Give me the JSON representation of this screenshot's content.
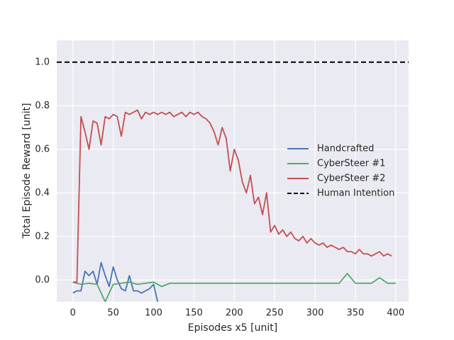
{
  "chart_data": {
    "type": "line",
    "xlabel": "Episodes x5 [unit]",
    "ylabel": "Total Episode Reward [unit]",
    "xlim": [
      -20,
      416
    ],
    "ylim": [
      -0.1,
      1.1
    ],
    "xticks": [
      0,
      50,
      100,
      150,
      200,
      250,
      300,
      350,
      400
    ],
    "yticks": [
      {
        "value": 0,
        "label": "0.0"
      },
      {
        "value": 0.2,
        "label": "0.2"
      },
      {
        "value": 0.4,
        "label": "0.4"
      },
      {
        "value": 0.6,
        "label": "0.6"
      },
      {
        "value": 0.8,
        "label": "0.8"
      },
      {
        "value": 1.0,
        "label": "1.0"
      }
    ],
    "grid": true,
    "legend": "center right",
    "series": [
      {
        "name": "Handcrafted",
        "color": "#4c72b0",
        "x": [
          0,
          5,
          10,
          15,
          20,
          25,
          30,
          35,
          40,
          45,
          50,
          55,
          60,
          65,
          70,
          75,
          80,
          85,
          90,
          95,
          100,
          105
        ],
        "values": [
          -0.06,
          -0.05,
          -0.05,
          0.04,
          0.02,
          0.04,
          -0.02,
          0.08,
          0.02,
          -0.03,
          0.06,
          0.0,
          -0.04,
          -0.05,
          0.02,
          -0.05,
          -0.05,
          -0.06,
          -0.05,
          -0.04,
          -0.02,
          -0.1
        ]
      },
      {
        "name": "CyberSteer #1",
        "color": "#55a868",
        "x": [
          0,
          10,
          20,
          30,
          40,
          50,
          60,
          70,
          80,
          90,
          100,
          110,
          120,
          130,
          140,
          150,
          160,
          170,
          180,
          190,
          200,
          210,
          220,
          230,
          240,
          250,
          260,
          270,
          280,
          290,
          300,
          310,
          320,
          330,
          340,
          350,
          360,
          370,
          380,
          390,
          400
        ],
        "values": [
          -0.01,
          -0.02,
          -0.015,
          -0.02,
          -0.1,
          -0.02,
          -0.015,
          -0.01,
          -0.02,
          -0.015,
          -0.01,
          -0.03,
          -0.015,
          -0.015,
          -0.015,
          -0.015,
          -0.015,
          -0.015,
          -0.015,
          -0.015,
          -0.015,
          -0.015,
          -0.015,
          -0.015,
          -0.015,
          -0.015,
          -0.015,
          -0.015,
          -0.015,
          -0.015,
          -0.015,
          -0.015,
          -0.015,
          -0.015,
          0.03,
          -0.015,
          -0.015,
          -0.015,
          0.01,
          -0.015,
          -0.015
        ]
      },
      {
        "name": "CyberSteer #2",
        "color": "#c44e52",
        "x": [
          0,
          5,
          10,
          15,
          20,
          25,
          30,
          35,
          40,
          45,
          50,
          55,
          60,
          65,
          70,
          75,
          80,
          85,
          90,
          95,
          100,
          105,
          110,
          115,
          120,
          125,
          130,
          135,
          140,
          145,
          150,
          155,
          160,
          165,
          170,
          175,
          180,
          185,
          190,
          195,
          200,
          205,
          210,
          215,
          220,
          225,
          230,
          235,
          240,
          245,
          250,
          255,
          260,
          265,
          270,
          275,
          280,
          285,
          290,
          295,
          300,
          305,
          310,
          315,
          320,
          325,
          330,
          335,
          340,
          345,
          350,
          355,
          360,
          365,
          370,
          375,
          380,
          385,
          390,
          395
        ],
        "values": [
          -0.01,
          -0.01,
          0.75,
          0.68,
          0.6,
          0.73,
          0.72,
          0.62,
          0.75,
          0.74,
          0.76,
          0.75,
          0.66,
          0.77,
          0.76,
          0.77,
          0.78,
          0.74,
          0.77,
          0.76,
          0.77,
          0.76,
          0.77,
          0.76,
          0.77,
          0.75,
          0.76,
          0.77,
          0.75,
          0.77,
          0.76,
          0.77,
          0.75,
          0.74,
          0.72,
          0.68,
          0.62,
          0.7,
          0.65,
          0.5,
          0.6,
          0.55,
          0.45,
          0.4,
          0.48,
          0.35,
          0.38,
          0.3,
          0.4,
          0.22,
          0.25,
          0.21,
          0.23,
          0.2,
          0.22,
          0.19,
          0.18,
          0.2,
          0.17,
          0.19,
          0.17,
          0.16,
          0.17,
          0.15,
          0.16,
          0.15,
          0.14,
          0.15,
          0.13,
          0.13,
          0.12,
          0.14,
          0.12,
          0.12,
          0.11,
          0.12,
          0.13,
          0.11,
          0.12,
          0.11
        ]
      },
      {
        "name": "Human Intention",
        "color": "#000000",
        "dash": true,
        "y": 1.0
      }
    ]
  }
}
